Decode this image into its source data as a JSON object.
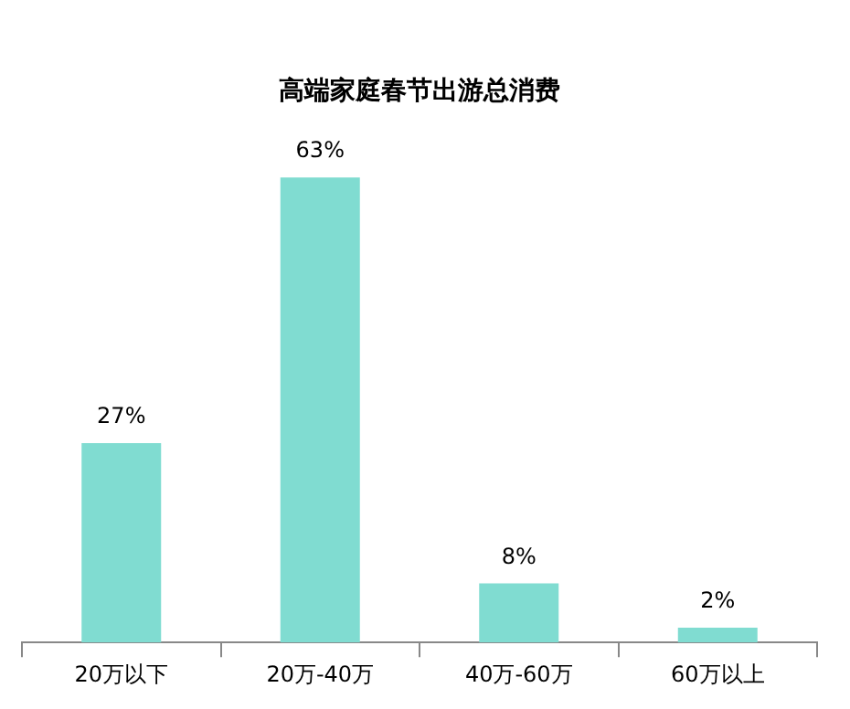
{
  "chart_data": {
    "type": "bar",
    "title": "高端家庭春节出游总消费",
    "categories": [
      "20万以下",
      "20万-40万",
      "40万-60万",
      "60万以上"
    ],
    "values": [
      27,
      63,
      8,
      2
    ],
    "value_labels": [
      "27%",
      "63%",
      "8%",
      "2%"
    ],
    "color": "#80dcd1",
    "grid": false,
    "legend": false
  }
}
